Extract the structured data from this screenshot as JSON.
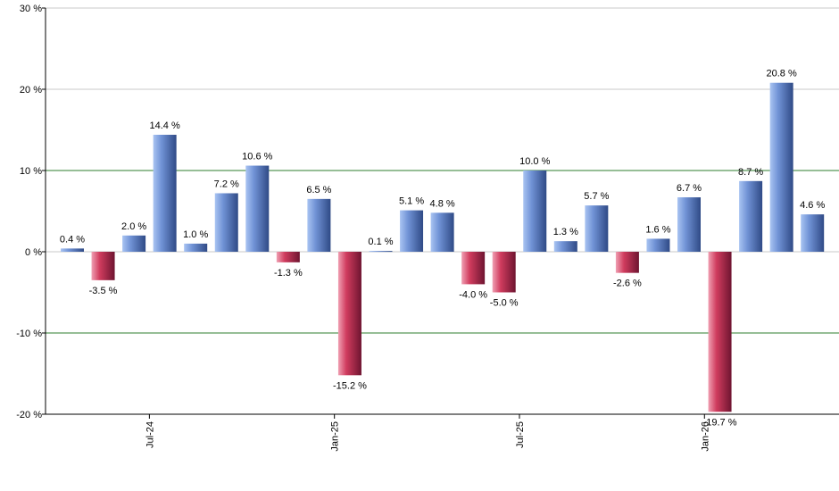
{
  "chart_data": {
    "type": "bar",
    "values": [
      0.4,
      -3.5,
      2.0,
      14.4,
      1.0,
      7.2,
      10.6,
      -1.3,
      6.5,
      -15.2,
      0.1,
      5.1,
      4.8,
      -4.0,
      -5.0,
      10.0,
      1.3,
      5.7,
      -2.6,
      1.6,
      6.7,
      -19.7,
      8.7,
      20.8,
      4.6
    ],
    "labels": [
      "0.4 %",
      "-3.5 %",
      "2.0 %",
      "14.4 %",
      "1.0 %",
      "7.2 %",
      "10.6 %",
      "-1.3 %",
      "6.5 %",
      "-15.2 %",
      "0.1 %",
      "5.1 %",
      "4.8 %",
      "-4.0 %",
      "-5.0 %",
      "10.0 %",
      "1.3 %",
      "5.7 %",
      "-2.6 %",
      "1.6 %",
      "6.7 %",
      "-19.7 %",
      "8.7 %",
      "20.8 %",
      "4.6 %"
    ],
    "x_ticks": [
      {
        "label": "Jul-24",
        "index": 2.5
      },
      {
        "label": "Jan-25",
        "index": 8.5
      },
      {
        "label": "Jul-25",
        "index": 14.5
      },
      {
        "label": "Jan-26",
        "index": 20.5
      }
    ],
    "y_ticks": [
      30,
      20,
      10,
      0,
      -10,
      -20
    ],
    "y_tick_labels": [
      "30 %",
      "20 %",
      "10 %",
      "0 %",
      "-10 %",
      "-20 %"
    ],
    "ylim": [
      -20,
      30
    ],
    "reference_lines": [
      10,
      -10
    ],
    "grid": true,
    "colors": {
      "positive_light": "#a9c4f2",
      "positive_mid": "#7193d6",
      "positive_dark": "#2f4a86",
      "negative_light": "#f0a0b3",
      "negative_mid": "#d03c5e",
      "negative_dark": "#6e1430",
      "reference_line": "#2e7d2e",
      "grid_line": "#c8c8c8",
      "axis": "#000000"
    }
  }
}
